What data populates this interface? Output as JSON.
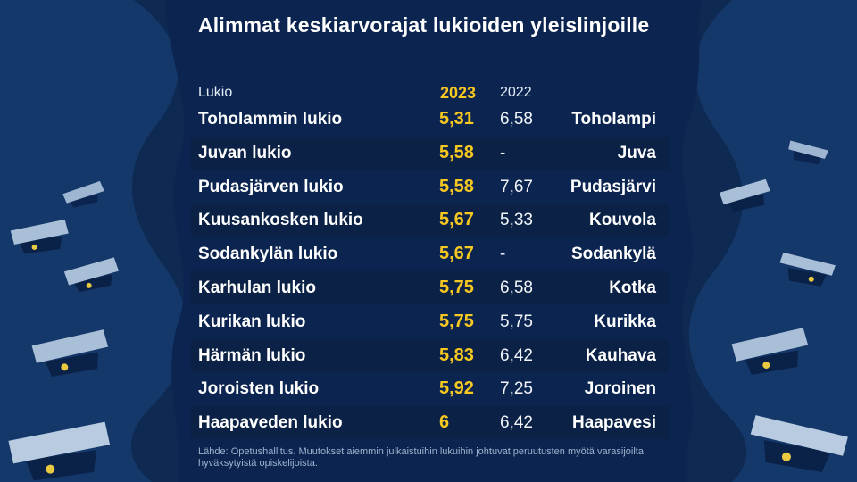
{
  "title": "Alimmat keskiarvorajat lukioiden yleislinjoille",
  "headers": {
    "school": "Lukio",
    "year_2023": "2023",
    "year_2022": "2022"
  },
  "source": "Lähde: Opetushallitus. Muutokset aiemmin julkaistuihin lukuihin johtuvat peruutusten myötä varasijoilta hyväksytyistä opiskelijoista.",
  "colors": {
    "background": "#0e2a52",
    "row_shade": "#0b2246",
    "accent_2023": "#f7c820",
    "cap": "#a9bfd8"
  },
  "chart_data": {
    "type": "table",
    "columns": [
      "Lukio",
      "2023",
      "2022",
      ""
    ],
    "rows": [
      {
        "school": "Toholammin lukio",
        "v2023": "5,31",
        "v2022": "6,58",
        "town": "Toholampi"
      },
      {
        "school": "Juvan lukio",
        "v2023": "5,58",
        "v2022": "-",
        "town": "Juva"
      },
      {
        "school": "Pudasjärven lukio",
        "v2023": "5,58",
        "v2022": "7,67",
        "town": "Pudasjärvi"
      },
      {
        "school": "Kuusankosken lukio",
        "v2023": "5,67",
        "v2022": "5,33",
        "town": "Kouvola"
      },
      {
        "school": "Sodankylän lukio",
        "v2023": "5,67",
        "v2022": "-",
        "town": "Sodankylä"
      },
      {
        "school": "Karhulan lukio",
        "v2023": "5,75",
        "v2022": "6,58",
        "town": "Kotka"
      },
      {
        "school": "Kurikan lukio",
        "v2023": "5,75",
        "v2022": "5,75",
        "town": "Kurikka"
      },
      {
        "school": "Härmän lukio",
        "v2023": "5,83",
        "v2022": "6,42",
        "town": "Kauhava"
      },
      {
        "school": "Joroisten lukio",
        "v2023": "5,92",
        "v2022": "7,25",
        "town": "Joroinen"
      },
      {
        "school": "Haapaveden lukio",
        "v2023": "6",
        "v2022": "6,42",
        "town": "Haapavesi"
      }
    ]
  }
}
